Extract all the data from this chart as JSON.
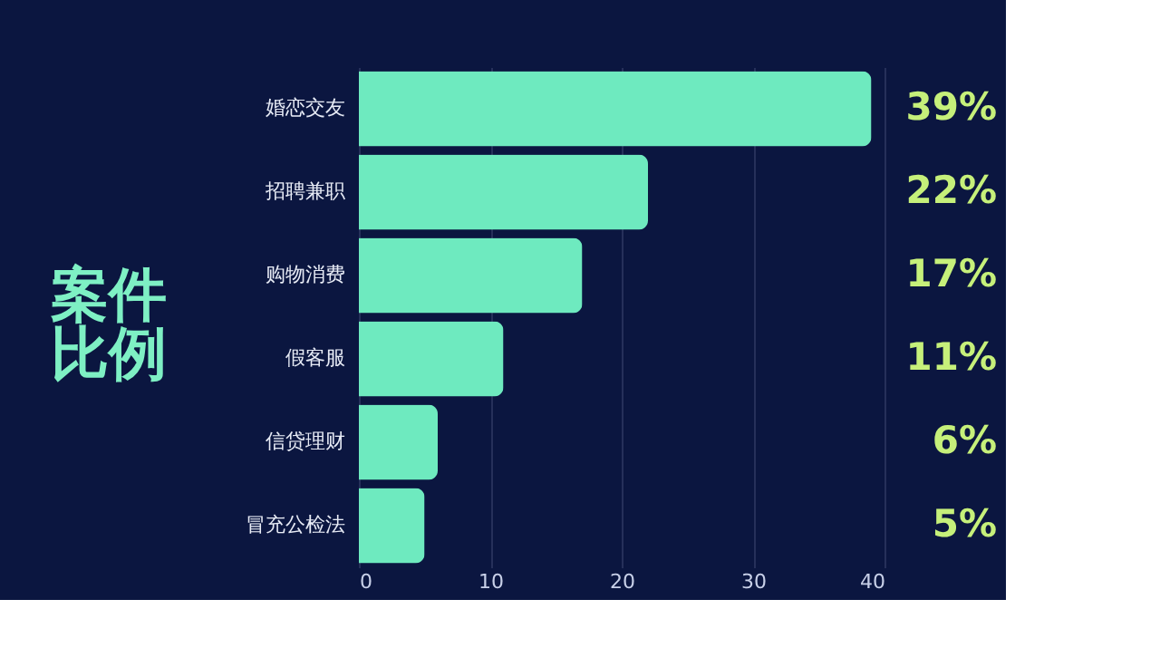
{
  "chart_data": {
    "type": "bar",
    "orientation": "horizontal",
    "title": "案件比例",
    "categories": [
      "婚恋交友",
      "招聘兼职",
      "购物消费",
      "假客服",
      "信贷理财",
      "冒充公检法"
    ],
    "values": [
      39,
      22,
      17,
      11,
      6,
      5
    ],
    "color": "#6eeabf",
    "value_labels": [
      "39%",
      "22%",
      "17%",
      "11%",
      "6%",
      "5%"
    ],
    "xlim": [
      0,
      40
    ],
    "xticks": [
      0,
      10,
      20,
      30,
      40
    ],
    "grid": "x"
  }
}
